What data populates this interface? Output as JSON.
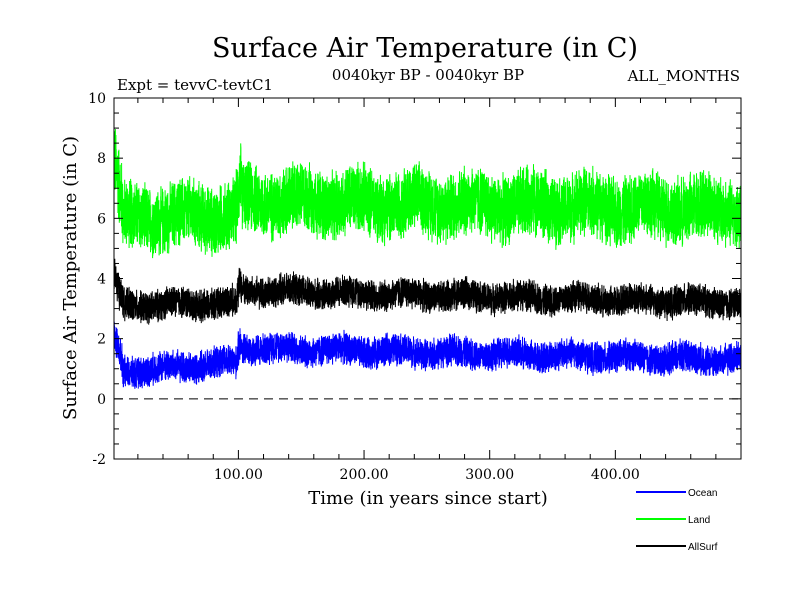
{
  "chart_data": {
    "type": "line",
    "title": "Surface Air Temperature (in C)",
    "subtitle_left": "Expt = tevvC-tevtC1",
    "subtitle_center": "0040kyr BP - 0040kyr BP",
    "subtitle_right": "ALL_MONTHS",
    "xlabel": "Time (in years since start)",
    "ylabel": "Surface Air Temperature (in C)",
    "xlim": [
      1,
      500
    ],
    "ylim": [
      -2,
      10
    ],
    "x_ticks": [
      100,
      200,
      300,
      400
    ],
    "x_tick_labels": [
      "100.00",
      "200.00",
      "300.00",
      "400.00"
    ],
    "y_ticks": [
      -2,
      0,
      2,
      4,
      6,
      8,
      10
    ],
    "y_tick_labels": [
      "-2",
      "0",
      "2",
      "4",
      "6",
      "8",
      "10"
    ],
    "reference_line": {
      "y": 0,
      "style": "dashed"
    },
    "legend_position": "bottom-right",
    "series": [
      {
        "name": "Land",
        "color": "#00ff00",
        "segments": [
          {
            "x": [
              1,
              8
            ],
            "mean": [
              8.0,
              6.2
            ],
            "amp": 1.5
          },
          {
            "x": [
              8,
              98
            ],
            "mean": [
              6.0,
              6.1
            ],
            "amp": 1.3
          },
          {
            "x": [
              98,
              102
            ],
            "mean": [
              6.1,
              7.3
            ],
            "amp": 1.4
          },
          {
            "x": [
              102,
              500
            ],
            "mean": [
              6.6,
              6.3
            ],
            "amp": 1.3
          }
        ]
      },
      {
        "name": "AllSurf",
        "color": "#000000",
        "segments": [
          {
            "x": [
              1,
              8
            ],
            "mean": [
              4.0,
              3.2
            ],
            "amp": 0.7
          },
          {
            "x": [
              8,
              98
            ],
            "mean": [
              3.1,
              3.2
            ],
            "amp": 0.6
          },
          {
            "x": [
              98,
              102
            ],
            "mean": [
              3.2,
              3.9
            ],
            "amp": 0.7
          },
          {
            "x": [
              102,
              500
            ],
            "mean": [
              3.6,
              3.2
            ],
            "amp": 0.6
          }
        ]
      },
      {
        "name": "Ocean",
        "color": "#0000ff",
        "segments": [
          {
            "x": [
              1,
              8
            ],
            "mean": [
              2.1,
              1.2
            ],
            "amp": 0.6
          },
          {
            "x": [
              8,
              98
            ],
            "mean": [
              0.9,
              1.2
            ],
            "amp": 0.6
          },
          {
            "x": [
              98,
              102
            ],
            "mean": [
              1.2,
              2.0
            ],
            "amp": 0.7
          },
          {
            "x": [
              102,
              500
            ],
            "mean": [
              1.7,
              1.3
            ],
            "amp": 0.6
          }
        ]
      }
    ]
  }
}
